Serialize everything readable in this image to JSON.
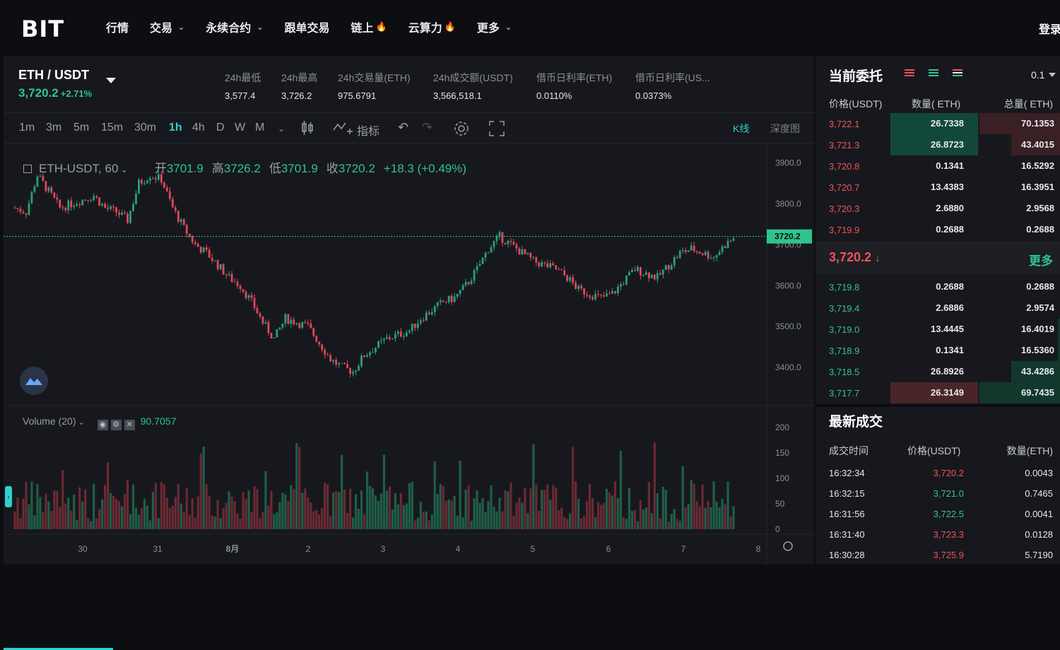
{
  "nav": {
    "logo": "BIT",
    "items": [
      {
        "label": "行情",
        "dropdown": false,
        "hot": false
      },
      {
        "label": "交易",
        "dropdown": true,
        "hot": false
      },
      {
        "label": "永续合约",
        "dropdown": true,
        "hot": false
      },
      {
        "label": "跟单交易",
        "dropdown": false,
        "hot": false
      },
      {
        "label": "链上",
        "dropdown": false,
        "hot": true
      },
      {
        "label": "云算力",
        "dropdown": false,
        "hot": true
      },
      {
        "label": "更多",
        "dropdown": true,
        "hot": false
      }
    ],
    "login": "登录"
  },
  "ticker": {
    "pair": "ETH / USDT",
    "price": "3,720.2",
    "change": "+2.71%",
    "stats": [
      {
        "label": "24h最低",
        "value": "3,577.4"
      },
      {
        "label": "24h最高",
        "value": "3,726.2"
      },
      {
        "label": "24h交易量(ETH)",
        "value": "975.6791"
      },
      {
        "label": "24h成交额(USDT)",
        "value": "3,566,518.1"
      },
      {
        "label": "借币日利率(ETH)",
        "value": "0.0110%"
      },
      {
        "label": "借币日利率(US...",
        "value": "0.0373%"
      }
    ]
  },
  "toolbar": {
    "timeframes": [
      "1m",
      "3m",
      "5m",
      "15m",
      "30m",
      "1h",
      "4h",
      "D",
      "W",
      "M"
    ],
    "active_timeframe": "1h",
    "indicator": "指标",
    "kline": "K线",
    "depth": "深度图"
  },
  "legend": {
    "symbol": "ETH-USDT, 60",
    "open_label": "开",
    "open": "3701.9",
    "high_label": "高",
    "high": "3726.2",
    "low_label": "低",
    "low": "3701.9",
    "close_label": "收",
    "close": "3720.2",
    "change": "+18.3 (+0.49%)"
  },
  "volume_legend": {
    "label": "Volume (20)",
    "value": "90.7057"
  },
  "chart_data": {
    "type": "candlestick",
    "price_axis_ticks": [
      "3900.0",
      "3800.0",
      "3700.0",
      "3600.0",
      "3500.0",
      "3400.0"
    ],
    "ylim": [
      3350,
      3920
    ],
    "current_price": "3720.2",
    "volume_axis_ticks": [
      "200",
      "150",
      "100",
      "50",
      "0"
    ],
    "x_ticks": [
      "30",
      "31",
      "8月",
      "2",
      "3",
      "4",
      "5",
      "6",
      "7",
      "8"
    ],
    "close_path": [
      [
        0,
        3790
      ],
      [
        4,
        3780
      ],
      [
        8,
        3870
      ],
      [
        12,
        3830
      ],
      [
        16,
        3790
      ],
      [
        20,
        3800
      ],
      [
        24,
        3810
      ],
      [
        28,
        3820
      ],
      [
        32,
        3790
      ],
      [
        36,
        3780
      ],
      [
        40,
        3760
      ],
      [
        44,
        3850
      ],
      [
        48,
        3870
      ],
      [
        52,
        3860
      ],
      [
        56,
        3790
      ],
      [
        60,
        3740
      ],
      [
        64,
        3700
      ],
      [
        68,
        3680
      ],
      [
        72,
        3650
      ],
      [
        76,
        3620
      ],
      [
        80,
        3600
      ],
      [
        84,
        3560
      ],
      [
        88,
        3510
      ],
      [
        92,
        3470
      ],
      [
        96,
        3520
      ],
      [
        100,
        3510
      ],
      [
        104,
        3500
      ],
      [
        108,
        3460
      ],
      [
        112,
        3420
      ],
      [
        116,
        3400
      ],
      [
        120,
        3390
      ],
      [
        124,
        3430
      ],
      [
        128,
        3450
      ],
      [
        132,
        3470
      ],
      [
        136,
        3480
      ],
      [
        140,
        3490
      ],
      [
        144,
        3520
      ],
      [
        148,
        3540
      ],
      [
        152,
        3560
      ],
      [
        156,
        3570
      ],
      [
        160,
        3600
      ],
      [
        164,
        3640
      ],
      [
        168,
        3690
      ],
      [
        172,
        3720
      ],
      [
        176,
        3700
      ],
      [
        180,
        3680
      ],
      [
        184,
        3660
      ],
      [
        188,
        3650
      ],
      [
        192,
        3640
      ],
      [
        196,
        3620
      ],
      [
        200,
        3590
      ],
      [
        204,
        3580
      ],
      [
        208,
        3570
      ],
      [
        212,
        3580
      ],
      [
        216,
        3610
      ],
      [
        220,
        3640
      ],
      [
        224,
        3630
      ],
      [
        228,
        3620
      ],
      [
        232,
        3650
      ],
      [
        236,
        3680
      ],
      [
        240,
        3690
      ],
      [
        244,
        3680
      ],
      [
        248,
        3670
      ],
      [
        252,
        3700
      ],
      [
        256,
        3720
      ]
    ]
  },
  "orderbook": {
    "title": "当前委托",
    "precision": "0.1",
    "headers": [
      "价格(USDT)",
      "数量( ETH)",
      "总量( ETH)"
    ],
    "asks": [
      {
        "price": "3,722.1",
        "qty": "26.7338",
        "total": "70.1353",
        "qbar": 0.5,
        "tbar": 0.33
      },
      {
        "price": "3,721.3",
        "qty": "26.8723",
        "total": "43.4015",
        "qbar": 0.5,
        "tbar": 0.2
      },
      {
        "price": "3,720.8",
        "qty": "0.1341",
        "total": "16.5292",
        "qbar": 0,
        "tbar": 0
      },
      {
        "price": "3,720.7",
        "qty": "13.4383",
        "total": "16.3951",
        "qbar": 0,
        "tbar": 0
      },
      {
        "price": "3,720.3",
        "qty": "2.6880",
        "total": "2.9568",
        "qbar": 0,
        "tbar": 0
      },
      {
        "price": "3,719.9",
        "qty": "0.2688",
        "total": "0.2688",
        "qbar": 0,
        "tbar": 0
      }
    ],
    "mid_price": "3,720.2",
    "more": "更多",
    "bids": [
      {
        "price": "3,719.8",
        "qty": "0.2688",
        "total": "0.2688",
        "qbar": 0,
        "tbar": 0
      },
      {
        "price": "3,719.4",
        "qty": "2.6886",
        "total": "2.9574",
        "qbar": 0,
        "tbar": 0
      },
      {
        "price": "3,719.0",
        "qty": "13.4445",
        "total": "16.4019",
        "qbar": 0,
        "tbar": 0.01
      },
      {
        "price": "3,718.9",
        "qty": "0.1341",
        "total": "16.5360",
        "qbar": 0,
        "tbar": 0.01
      },
      {
        "price": "3,718.5",
        "qty": "26.8926",
        "total": "43.4286",
        "qbar": 0,
        "tbar": 0.2
      },
      {
        "price": "3,717.7",
        "qty": "26.3149",
        "total": "69.7435",
        "qbar": 0.5,
        "tbar": 0.33
      }
    ]
  },
  "trades": {
    "title": "最新成交",
    "headers": [
      "成交时间",
      "价格(USDT)",
      "数量(ETH)"
    ],
    "rows": [
      {
        "time": "16:32:34",
        "price": "3,720.2",
        "amount": "0.0043",
        "side": "sell"
      },
      {
        "time": "16:32:15",
        "price": "3,721.0",
        "amount": "0.7465",
        "side": "buy"
      },
      {
        "time": "16:31:56",
        "price": "3,722.5",
        "amount": "0.0041",
        "side": "buy"
      },
      {
        "time": "16:31:40",
        "price": "3,723.3",
        "amount": "0.0128",
        "side": "sell"
      },
      {
        "time": "16:30:28",
        "price": "3,725.9",
        "amount": "5.7190",
        "side": "sell"
      }
    ]
  }
}
